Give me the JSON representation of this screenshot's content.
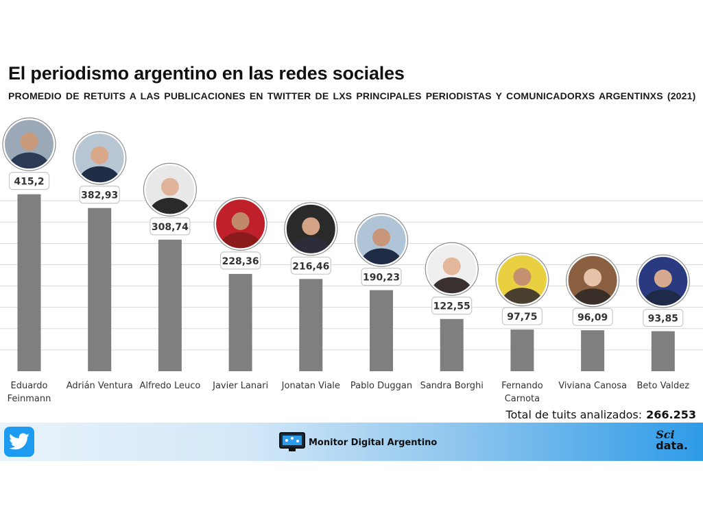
{
  "header": {
    "title": "El periodismo argentino en las redes sociales",
    "subtitle": "PROMEDIO DE RETUITS A LAS PUBLICACIONES EN TWITTER DE LXS PRINCIPALES PERIODISTAS Y COMUNICADORXS ARGENTINXS (2021)"
  },
  "chart_data": {
    "type": "bar",
    "categories": [
      "Eduardo Feinmann",
      "Adrián Ventura",
      "Alfredo Leuco",
      "Javier Lanari",
      "Jonatan Viale",
      "Pablo Duggan",
      "Sandra Borghi",
      "Fernando Carnota",
      "Viviana Canosa",
      "Beto Valdez"
    ],
    "category_lines": [
      [
        "Eduardo",
        "Feinmann"
      ],
      [
        "Adrián Ventura"
      ],
      [
        "Alfredo Leuco"
      ],
      [
        "Javier Lanari"
      ],
      [
        "Jonatan Viale"
      ],
      [
        "Pablo Duggan"
      ],
      [
        "Sandra Borghi"
      ],
      [
        "Fernando",
        "Carnota"
      ],
      [
        "Viviana Canosa"
      ],
      [
        "Beto Valdez"
      ]
    ],
    "values": [
      415.2,
      382.93,
      308.74,
      228.36,
      216.46,
      190.23,
      122.55,
      97.75,
      96.09,
      93.85
    ],
    "value_labels": [
      "415,2",
      "382,93",
      "308,74",
      "228,36",
      "216,46",
      "190,23",
      "122,55",
      "97,75",
      "96,09",
      "93,85"
    ],
    "ylim": [
      0,
      450
    ],
    "grid": true,
    "bar_color": "#7f7f7f"
  },
  "footer": {
    "total_label": "Total de tuits analizados:",
    "total_value": "266.253",
    "brand": "Monitor Digital Argentino",
    "sci": "Sci",
    "data": "data."
  },
  "colors": {
    "bar": "#7f7f7f",
    "grid": "#d9d9d9",
    "twitter": "#1d9bf0",
    "footer_end": "#2e9be8"
  },
  "icons": [
    "twitter-bird-icon",
    "monitor-icon",
    "avatar-icon"
  ]
}
